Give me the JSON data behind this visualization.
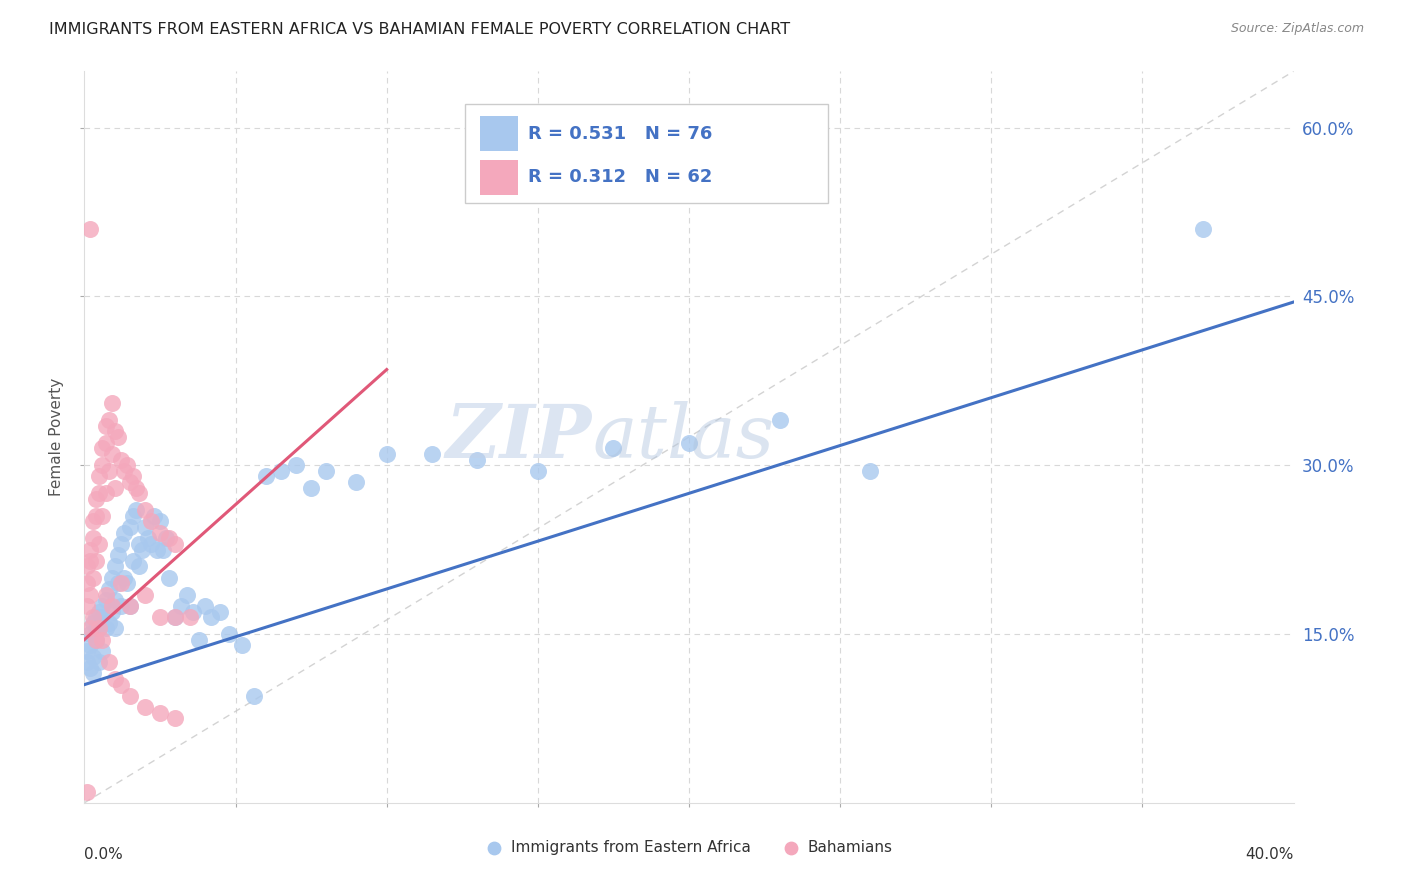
{
  "title": "IMMIGRANTS FROM EASTERN AFRICA VS BAHAMIAN FEMALE POVERTY CORRELATION CHART",
  "source": "Source: ZipAtlas.com",
  "ylabel": "Female Poverty",
  "xlim": [
    0.0,
    0.4
  ],
  "ylim": [
    0.0,
    0.65
  ],
  "legend_label1": "Immigrants from Eastern Africa",
  "legend_label2": "Bahamians",
  "color_blue": "#A8C8EE",
  "color_pink": "#F4A8BC",
  "color_blue_line": "#4472C4",
  "color_pink_line": "#E05878",
  "watermark_zip": "ZIP",
  "watermark_atlas": "atlas",
  "blue_scatter_x": [
    0.001,
    0.001,
    0.002,
    0.002,
    0.002,
    0.003,
    0.003,
    0.003,
    0.004,
    0.004,
    0.004,
    0.005,
    0.005,
    0.005,
    0.006,
    0.006,
    0.006,
    0.007,
    0.007,
    0.008,
    0.008,
    0.009,
    0.009,
    0.01,
    0.01,
    0.01,
    0.011,
    0.011,
    0.012,
    0.012,
    0.013,
    0.013,
    0.014,
    0.015,
    0.015,
    0.016,
    0.016,
    0.017,
    0.018,
    0.018,
    0.019,
    0.02,
    0.021,
    0.022,
    0.023,
    0.024,
    0.025,
    0.026,
    0.027,
    0.028,
    0.03,
    0.032,
    0.034,
    0.036,
    0.038,
    0.04,
    0.042,
    0.045,
    0.048,
    0.052,
    0.056,
    0.06,
    0.065,
    0.07,
    0.075,
    0.08,
    0.09,
    0.1,
    0.115,
    0.13,
    0.15,
    0.175,
    0.2,
    0.23,
    0.26,
    0.37
  ],
  "blue_scatter_y": [
    0.135,
    0.125,
    0.14,
    0.12,
    0.15,
    0.13,
    0.16,
    0.115,
    0.165,
    0.145,
    0.155,
    0.17,
    0.125,
    0.155,
    0.175,
    0.135,
    0.165,
    0.18,
    0.155,
    0.19,
    0.16,
    0.2,
    0.17,
    0.21,
    0.18,
    0.155,
    0.22,
    0.195,
    0.23,
    0.175,
    0.24,
    0.2,
    0.195,
    0.245,
    0.175,
    0.255,
    0.215,
    0.26,
    0.23,
    0.21,
    0.225,
    0.245,
    0.235,
    0.23,
    0.255,
    0.225,
    0.25,
    0.225,
    0.235,
    0.2,
    0.165,
    0.175,
    0.185,
    0.17,
    0.145,
    0.175,
    0.165,
    0.17,
    0.15,
    0.14,
    0.095,
    0.29,
    0.295,
    0.3,
    0.28,
    0.295,
    0.285,
    0.31,
    0.31,
    0.305,
    0.295,
    0.315,
    0.32,
    0.34,
    0.295,
    0.51
  ],
  "pink_scatter_x": [
    0.001,
    0.001,
    0.001,
    0.002,
    0.002,
    0.002,
    0.003,
    0.003,
    0.003,
    0.004,
    0.004,
    0.004,
    0.005,
    0.005,
    0.005,
    0.006,
    0.006,
    0.006,
    0.007,
    0.007,
    0.007,
    0.008,
    0.008,
    0.009,
    0.009,
    0.01,
    0.01,
    0.011,
    0.012,
    0.013,
    0.014,
    0.015,
    0.016,
    0.017,
    0.018,
    0.02,
    0.022,
    0.025,
    0.028,
    0.03,
    0.003,
    0.005,
    0.007,
    0.009,
    0.012,
    0.015,
    0.02,
    0.025,
    0.03,
    0.035,
    0.002,
    0.004,
    0.006,
    0.008,
    0.01,
    0.012,
    0.015,
    0.02,
    0.025,
    0.03,
    0.002,
    0.001
  ],
  "pink_scatter_y": [
    0.195,
    0.175,
    0.21,
    0.215,
    0.185,
    0.225,
    0.235,
    0.2,
    0.25,
    0.255,
    0.215,
    0.27,
    0.275,
    0.23,
    0.29,
    0.3,
    0.255,
    0.315,
    0.32,
    0.275,
    0.335,
    0.34,
    0.295,
    0.355,
    0.31,
    0.33,
    0.28,
    0.325,
    0.305,
    0.295,
    0.3,
    0.285,
    0.29,
    0.28,
    0.275,
    0.26,
    0.25,
    0.24,
    0.235,
    0.23,
    0.165,
    0.155,
    0.185,
    0.175,
    0.195,
    0.175,
    0.185,
    0.165,
    0.165,
    0.165,
    0.155,
    0.145,
    0.145,
    0.125,
    0.11,
    0.105,
    0.095,
    0.085,
    0.08,
    0.075,
    0.51,
    0.01
  ]
}
